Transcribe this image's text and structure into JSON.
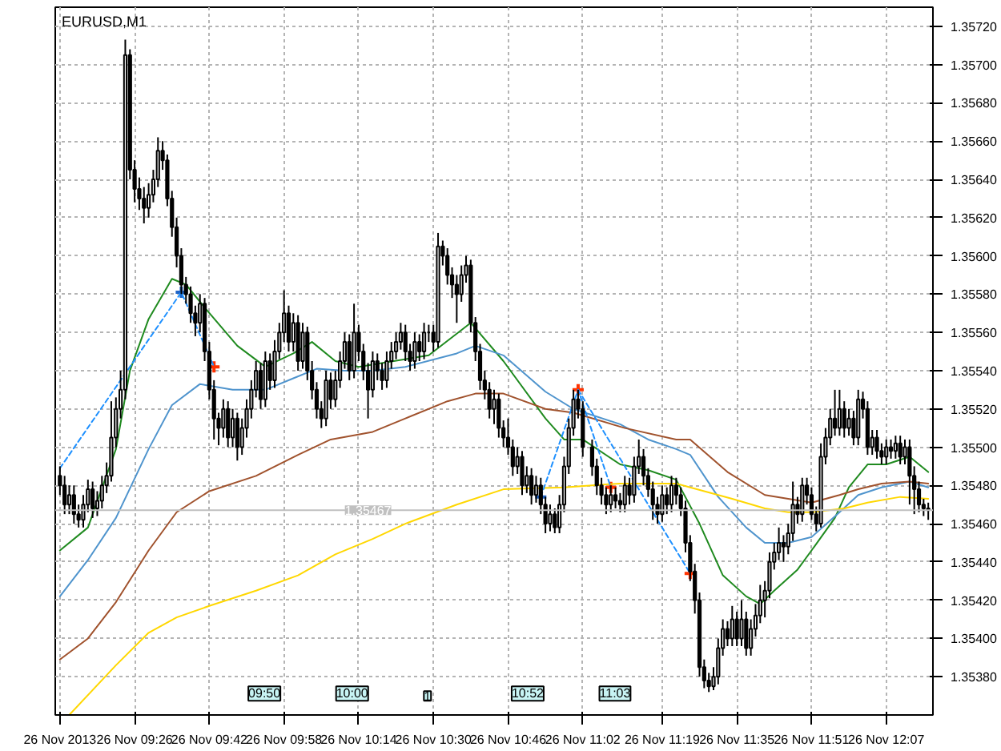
{
  "chart_data": {
    "type": "candlestick",
    "title": "EURUSD,M1",
    "x": [
      "2013-11-26T09:10",
      "2013-11-26T09:11",
      "2013-11-26T09:12",
      "2013-11-26T09:13",
      "2013-11-26T09:14",
      "2013-11-26T09:15",
      "2013-11-26T09:16",
      "2013-11-26T09:17",
      "2013-11-26T09:18",
      "2013-11-26T09:19",
      "2013-11-26T09:20",
      "2013-11-26T09:21",
      "2013-11-26T09:22",
      "2013-11-26T09:23",
      "2013-11-26T09:24",
      "2013-11-26T09:25",
      "2013-11-26T09:26",
      "2013-11-26T09:27",
      "2013-11-26T09:28",
      "2013-11-26T09:29",
      "2013-11-26T09:30",
      "2013-11-26T09:31",
      "2013-11-26T09:32",
      "2013-11-26T09:33",
      "2013-11-26T09:34",
      "2013-11-26T09:35",
      "2013-11-26T09:36",
      "2013-11-26T09:37",
      "2013-11-26T09:38",
      "2013-11-26T09:39",
      "2013-11-26T09:40",
      "2013-11-26T09:41",
      "2013-11-26T09:42",
      "2013-11-26T09:43",
      "2013-11-26T09:44",
      "2013-11-26T09:45",
      "2013-11-26T09:46",
      "2013-11-26T09:47",
      "2013-11-26T09:48",
      "2013-11-26T09:49",
      "2013-11-26T09:50",
      "2013-11-26T09:51",
      "2013-11-26T09:52",
      "2013-11-26T09:53",
      "2013-11-26T09:54",
      "2013-11-26T09:55",
      "2013-11-26T09:56",
      "2013-11-26T09:57",
      "2013-11-26T09:58",
      "2013-11-26T09:59",
      "2013-11-26T10:00",
      "2013-11-26T10:01",
      "2013-11-26T10:02",
      "2013-11-26T10:03",
      "2013-11-26T10:04",
      "2013-11-26T10:05",
      "2013-11-26T10:06",
      "2013-11-26T10:07",
      "2013-11-26T10:08",
      "2013-11-26T10:09",
      "2013-11-26T10:10",
      "2013-11-26T10:11",
      "2013-11-26T10:12",
      "2013-11-26T10:13",
      "2013-11-26T10:14",
      "2013-11-26T10:15",
      "2013-11-26T10:16",
      "2013-11-26T10:17",
      "2013-11-26T10:18",
      "2013-11-26T10:19",
      "2013-11-26T10:20",
      "2013-11-26T10:21",
      "2013-11-26T10:22",
      "2013-11-26T10:23",
      "2013-11-26T10:24",
      "2013-11-26T10:25",
      "2013-11-26T10:26",
      "2013-11-26T10:27",
      "2013-11-26T10:28",
      "2013-11-26T10:29",
      "2013-11-26T10:30",
      "2013-11-26T10:31",
      "2013-11-26T10:32",
      "2013-11-26T10:33",
      "2013-11-26T10:34",
      "2013-11-26T10:35",
      "2013-11-26T10:36",
      "2013-11-26T10:37",
      "2013-11-26T10:38",
      "2013-11-26T10:39",
      "2013-11-26T10:40",
      "2013-11-26T10:41",
      "2013-11-26T10:42",
      "2013-11-26T10:43",
      "2013-11-26T10:44",
      "2013-11-26T10:45",
      "2013-11-26T10:46",
      "2013-11-26T10:47",
      "2013-11-26T10:48",
      "2013-11-26T10:49",
      "2013-11-26T10:50",
      "2013-11-26T10:51",
      "2013-11-26T10:52",
      "2013-11-26T10:53",
      "2013-11-26T10:54",
      "2013-11-26T10:55",
      "2013-11-26T10:56",
      "2013-11-26T10:57",
      "2013-11-26T10:58",
      "2013-11-26T10:59",
      "2013-11-26T11:00",
      "2013-11-26T11:01",
      "2013-11-26T11:02",
      "2013-11-26T11:04",
      "2013-11-26T11:05",
      "2013-11-26T11:06",
      "2013-11-26T11:07",
      "2013-11-26T11:08",
      "2013-11-26T11:09",
      "2013-11-26T11:10",
      "2013-11-26T11:11",
      "2013-11-26T11:12",
      "2013-11-26T11:13",
      "2013-11-26T11:14",
      "2013-11-26T11:15",
      "2013-11-26T11:16",
      "2013-11-26T11:17",
      "2013-11-26T11:18",
      "2013-11-26T11:19",
      "2013-11-26T11:20",
      "2013-11-26T11:21",
      "2013-11-26T11:22",
      "2013-11-26T11:23",
      "2013-11-26T11:24",
      "2013-11-26T11:25",
      "2013-11-26T11:26",
      "2013-11-26T11:27",
      "2013-11-26T11:28",
      "2013-11-26T11:29",
      "2013-11-26T11:30",
      "2013-11-26T11:31",
      "2013-11-26T11:32",
      "2013-11-26T11:33",
      "2013-11-26T11:34",
      "2013-11-26T11:35",
      "2013-11-26T11:36",
      "2013-11-26T11:37",
      "2013-11-26T11:38",
      "2013-11-26T11:39",
      "2013-11-26T11:40",
      "2013-11-26T11:41",
      "2013-11-26T11:42",
      "2013-11-26T11:43",
      "2013-11-26T11:44",
      "2013-11-26T11:45",
      "2013-11-26T11:46",
      "2013-11-26T11:47",
      "2013-11-26T11:48",
      "2013-11-26T11:49",
      "2013-11-26T11:50",
      "2013-11-26T11:51",
      "2013-11-26T11:52",
      "2013-11-26T11:53",
      "2013-11-26T11:54",
      "2013-11-26T11:55",
      "2013-11-26T11:56",
      "2013-11-26T11:57",
      "2013-11-26T11:58",
      "2013-11-26T11:59",
      "2013-11-26T12:00",
      "2013-11-26T12:01",
      "2013-11-26T12:02",
      "2013-11-26T12:03",
      "2013-11-26T12:04",
      "2013-11-26T12:05",
      "2013-11-26T12:06",
      "2013-11-26T12:07",
      "2013-11-26T12:08",
      "2013-11-26T12:09",
      "2013-11-26T12:10",
      "2013-11-26T12:11",
      "2013-11-26T12:12",
      "2013-11-26T12:13",
      "2013-11-26T12:14",
      "2013-11-26T12:15",
      "2013-11-26T12:16"
    ],
    "ohlc": [
      [
        1.35485,
        1.3549,
        1.35475,
        1.3548
      ],
      [
        1.3548,
        1.35485,
        1.35465,
        1.3547
      ],
      [
        1.3547,
        1.3548,
        1.35465,
        1.35475
      ],
      [
        1.35475,
        1.3548,
        1.3546,
        1.35465
      ],
      [
        1.35465,
        1.3547,
        1.35458,
        1.35462
      ],
      [
        1.35462,
        1.35475,
        1.35458,
        1.3547
      ],
      [
        1.3547,
        1.35483,
        1.35466,
        1.35478
      ],
      [
        1.35478,
        1.35482,
        1.35463,
        1.35468
      ],
      [
        1.35468,
        1.35477,
        1.35464,
        1.35472
      ],
      [
        1.35472,
        1.35485,
        1.35468,
        1.3548
      ],
      [
        1.3548,
        1.35492,
        1.35476,
        1.35485
      ],
      [
        1.35485,
        1.35524,
        1.35482,
        1.35505
      ],
      [
        1.35505,
        1.35526,
        1.355,
        1.3552
      ],
      [
        1.3552,
        1.3554,
        1.35515,
        1.3553
      ],
      [
        1.3553,
        1.35713,
        1.35525,
        1.35705
      ],
      [
        1.35705,
        1.35708,
        1.3564,
        1.35645
      ],
      [
        1.35645,
        1.3565,
        1.35628,
        1.35635
      ],
      [
        1.35635,
        1.35641,
        1.35624,
        1.3563
      ],
      [
        1.3563,
        1.35636,
        1.35617,
        1.35625
      ],
      [
        1.35625,
        1.35638,
        1.3562,
        1.35632
      ],
      [
        1.35632,
        1.35645,
        1.35628,
        1.3564
      ],
      [
        1.3564,
        1.35662,
        1.35636,
        1.35655
      ],
      [
        1.35655,
        1.3566,
        1.35645,
        1.3565
      ],
      [
        1.3565,
        1.35653,
        1.35626,
        1.3563
      ],
      [
        1.3563,
        1.35634,
        1.3561,
        1.35615
      ],
      [
        1.35615,
        1.3562,
        1.35594,
        1.356
      ],
      [
        1.356,
        1.35604,
        1.3558,
        1.35585
      ],
      [
        1.35585,
        1.35589,
        1.35575,
        1.3558
      ],
      [
        1.3558,
        1.35584,
        1.35565,
        1.3557
      ],
      [
        1.3557,
        1.35574,
        1.35558,
        1.35565
      ],
      [
        1.35565,
        1.3558,
        1.3556,
        1.35575
      ],
      [
        1.35575,
        1.35578,
        1.35545,
        1.3555
      ],
      [
        1.3555,
        1.35555,
        1.35525,
        1.3553
      ],
      [
        1.3553,
        1.35535,
        1.35504,
        1.35515
      ],
      [
        1.35515,
        1.35518,
        1.35501,
        1.3551
      ],
      [
        1.3551,
        1.35525,
        1.35505,
        1.3552
      ],
      [
        1.3552,
        1.35524,
        1.355,
        1.35505
      ],
      [
        1.35505,
        1.3552,
        1.355,
        1.35515
      ],
      [
        1.35515,
        1.35518,
        1.35493,
        1.355
      ],
      [
        1.355,
        1.35515,
        1.35496,
        1.3551
      ],
      [
        1.3551,
        1.35525,
        1.35505,
        1.3552
      ],
      [
        1.3552,
        1.35535,
        1.35515,
        1.3553
      ],
      [
        1.3553,
        1.35545,
        1.35526,
        1.3554
      ],
      [
        1.3554,
        1.35544,
        1.3552,
        1.35525
      ],
      [
        1.35525,
        1.3555,
        1.35521,
        1.35545
      ],
      [
        1.35545,
        1.35549,
        1.3553,
        1.35535
      ],
      [
        1.35535,
        1.35556,
        1.35531,
        1.3555
      ],
      [
        1.3555,
        1.35565,
        1.35546,
        1.3556
      ],
      [
        1.3556,
        1.35582,
        1.35555,
        1.3557
      ],
      [
        1.3557,
        1.35574,
        1.3555,
        1.35555
      ],
      [
        1.35555,
        1.3557,
        1.3555,
        1.35565
      ],
      [
        1.35565,
        1.35569,
        1.3554,
        1.35545
      ],
      [
        1.35545,
        1.35565,
        1.35541,
        1.3556
      ],
      [
        1.3556,
        1.35563,
        1.35535,
        1.3554
      ],
      [
        1.3554,
        1.35545,
        1.35525,
        1.3553
      ],
      [
        1.3553,
        1.35534,
        1.35515,
        1.3552
      ],
      [
        1.3552,
        1.35524,
        1.3551,
        1.35515
      ],
      [
        1.35515,
        1.3554,
        1.35511,
        1.35535
      ],
      [
        1.35535,
        1.35539,
        1.3552,
        1.35525
      ],
      [
        1.35525,
        1.3554,
        1.35521,
        1.35535
      ],
      [
        1.35535,
        1.3555,
        1.35531,
        1.35545
      ],
      [
        1.35545,
        1.3556,
        1.35541,
        1.35555
      ],
      [
        1.35555,
        1.35559,
        1.35535,
        1.3554
      ],
      [
        1.3554,
        1.35575,
        1.35536,
        1.3556
      ],
      [
        1.3556,
        1.35564,
        1.35545,
        1.3555
      ],
      [
        1.3555,
        1.35554,
        1.35535,
        1.3554
      ],
      [
        1.3554,
        1.35544,
        1.35515,
        1.3553
      ],
      [
        1.3553,
        1.3555,
        1.35526,
        1.35545
      ],
      [
        1.35545,
        1.35549,
        1.35535,
        1.3554
      ],
      [
        1.3554,
        1.35544,
        1.3553,
        1.35535
      ],
      [
        1.35535,
        1.3555,
        1.35531,
        1.35545
      ],
      [
        1.35545,
        1.35555,
        1.35541,
        1.3555
      ],
      [
        1.3555,
        1.3556,
        1.35546,
        1.35555
      ],
      [
        1.35555,
        1.35565,
        1.35551,
        1.3556
      ],
      [
        1.3556,
        1.35564,
        1.35545,
        1.3555
      ],
      [
        1.3555,
        1.35554,
        1.3554,
        1.35545
      ],
      [
        1.35545,
        1.3556,
        1.35541,
        1.35555
      ],
      [
        1.35555,
        1.35559,
        1.35545,
        1.3555
      ],
      [
        1.3555,
        1.35565,
        1.35546,
        1.3556
      ],
      [
        1.3556,
        1.35564,
        1.35555,
        1.3556
      ],
      [
        1.3556,
        1.35564,
        1.3555,
        1.35555
      ],
      [
        1.35555,
        1.35612,
        1.35552,
        1.35605
      ],
      [
        1.35605,
        1.35608,
        1.35595,
        1.356
      ],
      [
        1.356,
        1.35604,
        1.35585,
        1.3559
      ],
      [
        1.3559,
        1.35594,
        1.35578,
        1.35585
      ],
      [
        1.35585,
        1.3559,
        1.35565,
        1.3558
      ],
      [
        1.3558,
        1.35595,
        1.35576,
        1.3559
      ],
      [
        1.3559,
        1.356,
        1.35586,
        1.35595
      ],
      [
        1.35595,
        1.35598,
        1.3556,
        1.35565
      ],
      [
        1.35565,
        1.35568,
        1.35545,
        1.3555
      ],
      [
        1.3555,
        1.35554,
        1.3553,
        1.35535
      ],
      [
        1.35535,
        1.3554,
        1.35525,
        1.3553
      ],
      [
        1.3553,
        1.35534,
        1.35515,
        1.3552
      ],
      [
        1.3552,
        1.3553,
        1.35512,
        1.35525
      ],
      [
        1.35525,
        1.35528,
        1.35505,
        1.3551
      ],
      [
        1.3551,
        1.35514,
        1.355,
        1.35505
      ],
      [
        1.35505,
        1.35515,
        1.35496,
        1.355
      ],
      [
        1.355,
        1.35504,
        1.35485,
        1.3549
      ],
      [
        1.3549,
        1.355,
        1.35486,
        1.35495
      ],
      [
        1.35495,
        1.35498,
        1.35475,
        1.3548
      ],
      [
        1.3548,
        1.3549,
        1.35476,
        1.35485
      ],
      [
        1.35485,
        1.35489,
        1.3547,
        1.35475
      ],
      [
        1.35475,
        1.35485,
        1.35471,
        1.3548
      ],
      [
        1.3548,
        1.35484,
        1.35465,
        1.3547
      ],
      [
        1.3547,
        1.35474,
        1.35455,
        1.3546
      ],
      [
        1.3546,
        1.3547,
        1.35456,
        1.35465
      ],
      [
        1.35465,
        1.35468,
        1.35455,
        1.35458
      ],
      [
        1.35458,
        1.35475,
        1.35455,
        1.3547
      ],
      [
        1.3547,
        1.35495,
        1.35466,
        1.3549
      ],
      [
        1.3549,
        1.35515,
        1.35486,
        1.3551
      ],
      [
        1.3551,
        1.3553,
        1.35506,
        1.35525
      ],
      [
        1.35525,
        1.3553,
        1.35515,
        1.3552
      ],
      [
        1.3552,
        1.35524,
        1.35495,
        1.355
      ],
      [
        1.355,
        1.35504,
        1.35485,
        1.3549
      ],
      [
        1.3549,
        1.35494,
        1.35475,
        1.3548
      ],
      [
        1.3548,
        1.35484,
        1.3547,
        1.35475
      ],
      [
        1.35475,
        1.35479,
        1.35465,
        1.3547
      ],
      [
        1.3547,
        1.3548,
        1.35466,
        1.35475
      ],
      [
        1.35475,
        1.35479,
        1.35468,
        1.35472
      ],
      [
        1.35472,
        1.35476,
        1.35466,
        1.3547
      ],
      [
        1.3547,
        1.35485,
        1.35466,
        1.3548
      ],
      [
        1.3548,
        1.35484,
        1.3547,
        1.35475
      ],
      [
        1.35475,
        1.35495,
        1.35471,
        1.3549
      ],
      [
        1.3549,
        1.35504,
        1.35486,
        1.35495
      ],
      [
        1.35495,
        1.35499,
        1.3548,
        1.35485
      ],
      [
        1.35485,
        1.35489,
        1.35474,
        1.35478
      ],
      [
        1.35478,
        1.35482,
        1.35462,
        1.3547
      ],
      [
        1.3547,
        1.35474,
        1.3546,
        1.35465
      ],
      [
        1.35465,
        1.3548,
        1.35461,
        1.35475
      ],
      [
        1.35475,
        1.35479,
        1.35465,
        1.3547
      ],
      [
        1.3547,
        1.35485,
        1.35466,
        1.3548
      ],
      [
        1.3548,
        1.35484,
        1.3547,
        1.35475
      ],
      [
        1.35475,
        1.35479,
        1.35464,
        1.35468
      ],
      [
        1.35468,
        1.35472,
        1.35445,
        1.3545
      ],
      [
        1.3545,
        1.35454,
        1.3543,
        1.35435
      ],
      [
        1.35435,
        1.35439,
        1.35413,
        1.3542
      ],
      [
        1.3542,
        1.35424,
        1.3538,
        1.35385
      ],
      [
        1.35385,
        1.35389,
        1.35374,
        1.35378
      ],
      [
        1.35378,
        1.35382,
        1.35372,
        1.35375
      ],
      [
        1.35375,
        1.35385,
        1.35373,
        1.3538
      ],
      [
        1.3538,
        1.354,
        1.35376,
        1.35395
      ],
      [
        1.35395,
        1.3541,
        1.35391,
        1.35405
      ],
      [
        1.35405,
        1.35409,
        1.35396,
        1.354
      ],
      [
        1.354,
        1.35417,
        1.35396,
        1.3541
      ],
      [
        1.3541,
        1.35414,
        1.35396,
        1.354
      ],
      [
        1.354,
        1.3542,
        1.35396,
        1.3541
      ],
      [
        1.3541,
        1.35414,
        1.35391,
        1.35395
      ],
      [
        1.35395,
        1.3541,
        1.35391,
        1.35405
      ],
      [
        1.35405,
        1.35418,
        1.35401,
        1.35412
      ],
      [
        1.35412,
        1.35428,
        1.35408,
        1.3542
      ],
      [
        1.3542,
        1.3543,
        1.35411,
        1.35425
      ],
      [
        1.35425,
        1.35445,
        1.35421,
        1.3544
      ],
      [
        1.3544,
        1.3545,
        1.35436,
        1.35445
      ],
      [
        1.35445,
        1.35458,
        1.35441,
        1.3545
      ],
      [
        1.3545,
        1.35454,
        1.3544,
        1.35448
      ],
      [
        1.35448,
        1.3546,
        1.35444,
        1.35455
      ],
      [
        1.35455,
        1.35482,
        1.35451,
        1.3547
      ],
      [
        1.3547,
        1.35474,
        1.3546,
        1.35465
      ],
      [
        1.35465,
        1.35484,
        1.35461,
        1.3548
      ],
      [
        1.3548,
        1.35484,
        1.3547,
        1.35475
      ],
      [
        1.35475,
        1.35479,
        1.35462,
        1.35465
      ],
      [
        1.35465,
        1.35469,
        1.35456,
        1.3546
      ],
      [
        1.3546,
        1.35502,
        1.35458,
        1.35495
      ],
      [
        1.35495,
        1.3551,
        1.35491,
        1.35505
      ],
      [
        1.35505,
        1.3552,
        1.35501,
        1.35515
      ],
      [
        1.35515,
        1.3553,
        1.35506,
        1.3551
      ],
      [
        1.3551,
        1.3553,
        1.35506,
        1.3552
      ],
      [
        1.3552,
        1.35524,
        1.35505,
        1.3551
      ],
      [
        1.3551,
        1.3552,
        1.35506,
        1.35515
      ],
      [
        1.35515,
        1.35519,
        1.35501,
        1.35505
      ],
      [
        1.35505,
        1.3553,
        1.35501,
        1.35525
      ],
      [
        1.35525,
        1.35529,
        1.35515,
        1.3552
      ],
      [
        1.3552,
        1.35524,
        1.35496,
        1.355
      ],
      [
        1.355,
        1.35509,
        1.35496,
        1.35505
      ],
      [
        1.35505,
        1.35509,
        1.35494,
        1.35498
      ],
      [
        1.35498,
        1.35502,
        1.35491,
        1.35495
      ],
      [
        1.35495,
        1.35504,
        1.35491,
        1.355
      ],
      [
        1.355,
        1.35504,
        1.35494,
        1.35498
      ],
      [
        1.35498,
        1.35506,
        1.35494,
        1.35502
      ],
      [
        1.35502,
        1.35506,
        1.35491,
        1.35495
      ],
      [
        1.35495,
        1.35504,
        1.35491,
        1.355
      ],
      [
        1.355,
        1.35504,
        1.3547,
        1.35485
      ],
      [
        1.35485,
        1.3549,
        1.35465,
        1.35478
      ],
      [
        1.35478,
        1.35482,
        1.35466,
        1.3547
      ],
      [
        1.3547,
        1.35473,
        1.35464,
        1.35468
      ],
      [
        1.35468,
        1.35471,
        1.35462,
        1.35467
      ]
    ],
    "series": [
      {
        "type": "line",
        "color": "#1f8a1f",
        "x": [
          "2013-11-26T09:10",
          "2013-11-26T09:16",
          "2013-11-26T09:22",
          "2013-11-26T09:25",
          "2013-11-26T09:29",
          "2013-11-26T09:34",
          "2013-11-26T09:37",
          "2013-11-26T09:41",
          "2013-11-26T09:48",
          "2013-11-26T09:54",
          "2013-11-26T10:00",
          "2013-11-26T10:04",
          "2013-11-26T10:09",
          "2013-11-26T10:14",
          "2013-11-26T10:29",
          "2013-11-26T10:38",
          "2013-11-26T10:45",
          "2013-11-26T10:54",
          "2013-11-26T10:58",
          "2013-11-26T11:02",
          "2013-11-26T11:10",
          "2013-11-26T11:16",
          "2013-11-26T11:22",
          "2013-11-26T11:27",
          "2013-11-26T11:32",
          "2013-11-26T11:37",
          "2013-11-26T11:40",
          "2013-11-26T11:43",
          "2013-11-26T11:48",
          "2013-11-26T11:51",
          "2013-11-26T11:56",
          "2013-11-26T11:59",
          "2013-11-26T12:03",
          "2013-11-26T12:07",
          "2013-11-26T12:12",
          "2013-11-26T12:16"
        ],
        "values": [
          1.35446,
          1.35458,
          1.35499,
          1.3554,
          1.35567,
          1.35588,
          1.35585,
          1.35573,
          1.35553,
          1.35542,
          1.35549,
          1.35555,
          1.35545,
          1.35542,
          1.35548,
          1.35565,
          1.35545,
          1.35515,
          1.35504,
          1.35504,
          1.35491,
          1.35488,
          1.35483,
          1.3546,
          1.35433,
          1.35422,
          1.35418,
          1.35425,
          1.35436,
          1.35446,
          1.35463,
          1.35479,
          1.35491,
          1.35491,
          1.35495,
          1.35487
        ]
      },
      {
        "type": "line",
        "color": "#4f94cd",
        "x": [
          "2013-11-26T09:10",
          "2013-11-26T09:16",
          "2013-11-26T09:22",
          "2013-11-26T09:29",
          "2013-11-26T09:34",
          "2013-11-26T09:40",
          "2013-11-26T09:47",
          "2013-11-26T09:54",
          "2013-11-26T10:00",
          "2013-11-26T10:05",
          "2013-11-26T10:11",
          "2013-11-26T10:17",
          "2013-11-26T10:24",
          "2013-11-26T10:35",
          "2013-11-26T10:39",
          "2013-11-26T10:45",
          "2013-11-26T10:54",
          "2013-11-26T11:00",
          "2013-11-26T11:10",
          "2013-11-26T11:16",
          "2013-11-26T11:22",
          "2013-11-26T11:25",
          "2013-11-26T11:31",
          "2013-11-26T11:37",
          "2013-11-26T11:41",
          "2013-11-26T11:46",
          "2013-11-26T11:51",
          "2013-11-26T11:57",
          "2013-11-26T12:01",
          "2013-11-26T12:06",
          "2013-11-26T12:12",
          "2013-11-26T12:16"
        ],
        "values": [
          1.35422,
          1.35441,
          1.35463,
          1.35499,
          1.35522,
          1.35533,
          1.3553,
          1.3553,
          1.35536,
          1.35541,
          1.3554,
          1.3554,
          1.35542,
          1.35549,
          1.35553,
          1.35548,
          1.35529,
          1.3552,
          1.35512,
          1.35504,
          1.35499,
          1.35496,
          1.35474,
          1.35458,
          1.3545,
          1.3545,
          1.35453,
          1.35466,
          1.35475,
          1.35479,
          1.35482,
          1.35479
        ]
      },
      {
        "type": "line",
        "color": "#a0522d",
        "x": [
          "2013-11-26T09:10",
          "2013-11-26T09:16",
          "2013-11-26T09:22",
          "2013-11-26T09:29",
          "2013-11-26T09:35",
          "2013-11-26T09:42",
          "2013-11-26T09:52",
          "2013-11-26T10:01",
          "2013-11-26T10:08",
          "2013-11-26T10:17",
          "2013-11-26T10:24",
          "2013-11-26T10:33",
          "2013-11-26T10:39",
          "2013-11-26T10:45",
          "2013-11-26T10:54",
          "2013-11-26T11:00",
          "2013-11-26T11:11",
          "2013-11-26T11:22",
          "2013-11-26T11:25",
          "2013-11-26T11:33",
          "2013-11-26T11:41",
          "2013-11-26T11:46",
          "2013-11-26T11:51",
          "2013-11-26T11:57",
          "2013-11-26T12:01",
          "2013-11-26T12:06",
          "2013-11-26T12:12",
          "2013-11-26T12:16"
        ],
        "values": [
          1.35389,
          1.354,
          1.35419,
          1.35446,
          1.35466,
          1.35477,
          1.35485,
          1.35496,
          1.35504,
          1.35508,
          1.35515,
          1.35524,
          1.35528,
          1.35528,
          1.3552,
          1.35518,
          1.3551,
          1.35504,
          1.35504,
          1.35487,
          1.35475,
          1.35473,
          1.35471,
          1.35475,
          1.35478,
          1.35481,
          1.35482,
          1.35481
        ]
      },
      {
        "type": "line",
        "color": "#ffd700",
        "x": [
          "2013-11-26T09:12",
          "2013-11-26T09:22",
          "2013-11-26T09:29",
          "2013-11-26T09:35",
          "2013-11-26T09:42",
          "2013-11-26T09:52",
          "2013-11-26T10:01",
          "2013-11-26T10:09",
          "2013-11-26T10:17",
          "2013-11-26T10:24",
          "2013-11-26T10:35",
          "2013-11-26T10:45",
          "2013-11-26T10:58",
          "2013-11-26T11:10",
          "2013-11-26T11:22",
          "2013-11-26T11:25",
          "2013-11-26T11:34",
          "2013-11-26T11:41",
          "2013-11-26T11:46",
          "2013-11-26T11:51",
          "2013-11-26T11:58",
          "2013-11-26T12:03",
          "2013-11-26T12:10",
          "2013-11-26T12:16"
        ],
        "values": [
          1.3536,
          1.35386,
          1.35403,
          1.35411,
          1.35417,
          1.35425,
          1.35433,
          1.35444,
          1.35452,
          1.3546,
          1.3547,
          1.35478,
          1.35479,
          1.35481,
          1.35481,
          1.35479,
          1.35473,
          1.35468,
          1.35466,
          1.35466,
          1.35468,
          1.35471,
          1.35474,
          1.35473
        ]
      },
      {
        "type": "line",
        "color": "#1e90ff",
        "line_style": "dashed",
        "x": [
          "2013-11-26T09:10",
          "2013-11-26T09:36",
          "2013-11-26T09:43"
        ],
        "values": [
          1.35489,
          1.35581,
          1.35542
        ]
      },
      {
        "type": "line",
        "color": "#1e90ff",
        "line_style": "dashed",
        "x": [
          "2013-11-26T10:53",
          "2013-11-26T11:01",
          "2013-11-26T11:08"
        ],
        "values": [
          1.35474,
          1.3553,
          1.35479
        ]
      },
      {
        "type": "line",
        "color": "#1e90ff",
        "line_style": "dashed",
        "x": [
          "2013-11-26T11:01",
          "2013-11-26T11:25"
        ],
        "values": [
          1.3553,
          1.35434
        ]
      },
      {
        "type": "scatter",
        "marker": "cross",
        "color": "#1e64c8",
        "x": [
          "2013-11-26T09:36",
          "2013-11-26T10:53"
        ],
        "values": [
          1.35581,
          1.35474
        ]
      },
      {
        "type": "scatter",
        "marker": "cross",
        "color": "#ff3300",
        "x": [
          "2013-11-26T09:43",
          "2013-11-26T11:01",
          "2013-11-26T11:08",
          "2013-11-26T11:25"
        ],
        "values": [
          1.35542,
          1.3553,
          1.35479,
          1.35434
        ]
      }
    ],
    "xlim": [
      "2013-11-26T09:09",
      "2013-11-26T12:17"
    ],
    "xticks": [
      {
        "value": "2013-11-26T09:10",
        "label": "26 Nov 2013"
      },
      {
        "value": "2013-11-26T09:26",
        "label": "26 Nov 09:26"
      },
      {
        "value": "2013-11-26T09:42",
        "label": "26 Nov 09:42"
      },
      {
        "value": "2013-11-26T09:58",
        "label": "26 Nov 09:58"
      },
      {
        "value": "2013-11-26T10:14",
        "label": "26 Nov 10:14"
      },
      {
        "value": "2013-11-26T10:30",
        "label": "26 Nov 10:30"
      },
      {
        "value": "2013-11-26T10:46",
        "label": "26 Nov 10:46"
      },
      {
        "value": "2013-11-26T11:02",
        "label": "26 Nov 11:02"
      },
      {
        "value": "2013-11-26T11:19",
        "label": "26 Nov 11:19"
      },
      {
        "value": "2013-11-26T11:35",
        "label": "26 Nov 11:35"
      },
      {
        "value": "2013-11-26T11:51",
        "label": "26 Nov 11:51"
      },
      {
        "value": "2013-11-26T12:07",
        "label": "26 Nov 12:07"
      }
    ],
    "ylim": [
      1.3536,
      1.3573
    ],
    "yticks": [
      {
        "value": 1.3538,
        "label": "1.35380"
      },
      {
        "value": 1.354,
        "label": "1.35400"
      },
      {
        "value": 1.3542,
        "label": "1.35420"
      },
      {
        "value": 1.3544,
        "label": "1.35440"
      },
      {
        "value": 1.3546,
        "label": "1.35460"
      },
      {
        "value": 1.3548,
        "label": "1.35480"
      },
      {
        "value": 1.355,
        "label": "1.35500"
      },
      {
        "value": 1.3552,
        "label": "1.35520"
      },
      {
        "value": 1.3554,
        "label": "1.35540"
      },
      {
        "value": 1.3556,
        "label": "1.35560"
      },
      {
        "value": 1.3558,
        "label": "1.35580"
      },
      {
        "value": 1.356,
        "label": "1.35600"
      },
      {
        "value": 1.3562,
        "label": "1.35620"
      },
      {
        "value": 1.3564,
        "label": "1.35640"
      },
      {
        "value": 1.3566,
        "label": "1.35660"
      },
      {
        "value": 1.3568,
        "label": "1.35680"
      },
      {
        "value": 1.357,
        "label": "1.35700"
      },
      {
        "value": 1.3572,
        "label": "1.35720"
      }
    ],
    "ref_lines": [
      {
        "axis": "y",
        "value": 1.35467,
        "label": "1.35467",
        "color": "#c0c0c0"
      }
    ],
    "annotations": [
      "09:50",
      "10:00",
      "1",
      "10:52",
      "11:03"
    ],
    "grid": true
  }
}
